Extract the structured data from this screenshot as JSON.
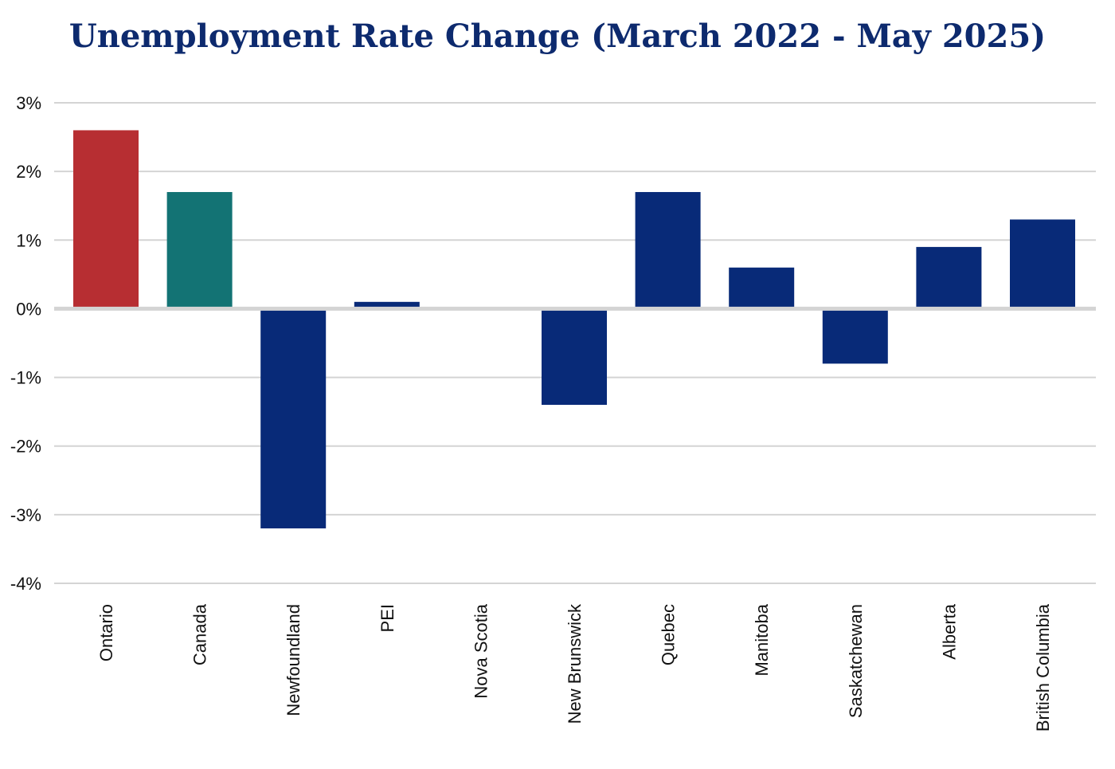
{
  "chart_data": {
    "type": "bar",
    "title": "Unemployment Rate Change (March 2022 - May 2025)",
    "xlabel": "",
    "ylabel": "",
    "ylim": [
      -4,
      3
    ],
    "yticks": [
      3,
      2,
      1,
      0,
      -1,
      -2,
      -3,
      -4
    ],
    "ytick_labels": [
      "3%",
      "2%",
      "1%",
      "0%",
      "-1%",
      "-2%",
      "-3%",
      "-4%"
    ],
    "grid": true,
    "legend": "none",
    "categories": [
      "Ontario",
      "Canada",
      "Newfoundland",
      "PEI",
      "Nova Scotia",
      "New Brunswick",
      "Quebec",
      "Manitoba",
      "Saskatchewan",
      "Alberta",
      "British Columbia"
    ],
    "values": [
      2.6,
      1.7,
      -3.2,
      0.1,
      0.0,
      -1.4,
      1.7,
      0.6,
      -0.8,
      0.9,
      1.3
    ],
    "colors": [
      "#b72e32",
      "#137374",
      "#082a78",
      "#082a78",
      "#082a78",
      "#082a78",
      "#082a78",
      "#082a78",
      "#082a78",
      "#082a78",
      "#082a78"
    ]
  }
}
